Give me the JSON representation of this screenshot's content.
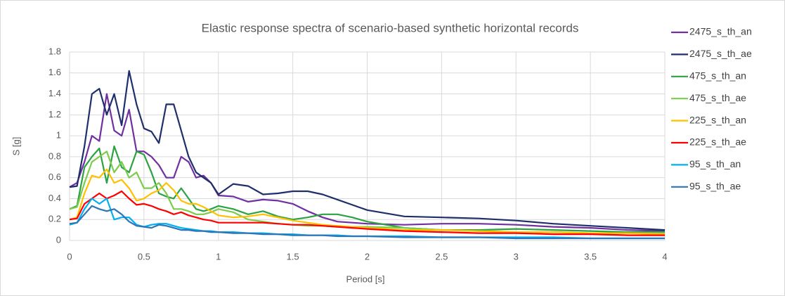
{
  "chart_data": {
    "type": "line",
    "title": "Elastic response spectra of scenario-based synthetic horizontal records",
    "x_label": "Period [s]",
    "y_label": "S [g]",
    "x": [
      0,
      0.05,
      0.1,
      0.15,
      0.2,
      0.25,
      0.3,
      0.35,
      0.4,
      0.45,
      0.5,
      0.55,
      0.6,
      0.65,
      0.7,
      0.75,
      0.8,
      0.85,
      0.9,
      0.95,
      1,
      1.1,
      1.2,
      1.3,
      1.4,
      1.5,
      1.6,
      1.7,
      1.8,
      1.9,
      2,
      2.25,
      2.5,
      2.75,
      3,
      3.25,
      3.5,
      3.75,
      4
    ],
    "xlim": [
      0,
      4
    ],
    "xticks": [
      0,
      0.5,
      1,
      1.5,
      2,
      2.5,
      3,
      3.5,
      4
    ],
    "ylim": [
      0,
      1.8
    ],
    "yticks": [
      0,
      0.2,
      0.4,
      0.6,
      0.8,
      1,
      1.2,
      1.4,
      1.6,
      1.8
    ],
    "grid": true,
    "legend": "right",
    "series": [
      {
        "name": "2475_s_th_an",
        "color": "#7030a0",
        "values": [
          0.51,
          0.55,
          0.75,
          1.0,
          0.95,
          1.4,
          1.05,
          1.0,
          1.25,
          0.85,
          0.85,
          0.8,
          0.72,
          0.6,
          0.6,
          0.8,
          0.75,
          0.6,
          0.62,
          0.55,
          0.43,
          0.42,
          0.37,
          0.39,
          0.38,
          0.35,
          0.28,
          0.22,
          0.18,
          0.17,
          0.16,
          0.15,
          0.16,
          0.16,
          0.15,
          0.13,
          0.12,
          0.1,
          0.09
        ]
      },
      {
        "name": "2475_s_th_ae",
        "color": "#1f2f6b",
        "values": [
          0.51,
          0.52,
          0.9,
          1.4,
          1.45,
          1.2,
          1.4,
          1.1,
          1.62,
          1.3,
          1.07,
          1.04,
          0.93,
          1.3,
          1.3,
          1.05,
          0.8,
          0.65,
          0.6,
          0.55,
          0.44,
          0.54,
          0.52,
          0.44,
          0.45,
          0.47,
          0.47,
          0.44,
          0.39,
          0.34,
          0.29,
          0.23,
          0.22,
          0.21,
          0.19,
          0.16,
          0.14,
          0.12,
          0.1
        ]
      },
      {
        "name": "475_s_th_an",
        "color": "#2ca243",
        "values": [
          0.3,
          0.33,
          0.7,
          0.8,
          0.88,
          0.55,
          0.9,
          0.7,
          0.65,
          0.85,
          0.82,
          0.65,
          0.45,
          0.42,
          0.4,
          0.5,
          0.4,
          0.3,
          0.28,
          0.3,
          0.33,
          0.3,
          0.25,
          0.28,
          0.23,
          0.2,
          0.22,
          0.25,
          0.25,
          0.22,
          0.18,
          0.12,
          0.1,
          0.1,
          0.11,
          0.1,
          0.09,
          0.08,
          0.08
        ]
      },
      {
        "name": "475_s_th_ae",
        "color": "#7ccc4c",
        "values": [
          0.3,
          0.32,
          0.55,
          0.75,
          0.8,
          0.85,
          0.65,
          0.75,
          0.6,
          0.65,
          0.5,
          0.5,
          0.55,
          0.45,
          0.3,
          0.3,
          0.28,
          0.25,
          0.25,
          0.27,
          0.3,
          0.27,
          0.2,
          0.18,
          0.16,
          0.15,
          0.14,
          0.14,
          0.13,
          0.13,
          0.13,
          0.12,
          0.1,
          0.09,
          0.08,
          0.08,
          0.07,
          0.07,
          0.07
        ]
      },
      {
        "name": "225_s_th_an",
        "color": "#ffc000",
        "values": [
          0.2,
          0.22,
          0.45,
          0.62,
          0.6,
          0.68,
          0.55,
          0.58,
          0.5,
          0.38,
          0.4,
          0.45,
          0.48,
          0.55,
          0.48,
          0.38,
          0.35,
          0.35,
          0.32,
          0.28,
          0.24,
          0.22,
          0.23,
          0.25,
          0.22,
          0.19,
          0.17,
          0.15,
          0.14,
          0.13,
          0.12,
          0.1,
          0.1,
          0.09,
          0.08,
          0.08,
          0.07,
          0.07,
          0.06
        ]
      },
      {
        "name": "225_s_th_ae",
        "color": "#ff0000",
        "values": [
          0.2,
          0.21,
          0.35,
          0.4,
          0.45,
          0.4,
          0.43,
          0.47,
          0.4,
          0.34,
          0.35,
          0.33,
          0.3,
          0.28,
          0.25,
          0.27,
          0.24,
          0.22,
          0.2,
          0.19,
          0.17,
          0.17,
          0.17,
          0.17,
          0.16,
          0.15,
          0.15,
          0.14,
          0.13,
          0.12,
          0.11,
          0.09,
          0.08,
          0.07,
          0.07,
          0.06,
          0.06,
          0.05,
          0.05
        ]
      },
      {
        "name": "95_s_th_an",
        "color": "#00b0f0",
        "values": [
          0.15,
          0.17,
          0.3,
          0.4,
          0.35,
          0.4,
          0.2,
          0.22,
          0.22,
          0.15,
          0.13,
          0.15,
          0.16,
          0.16,
          0.14,
          0.12,
          0.11,
          0.1,
          0.09,
          0.09,
          0.08,
          0.08,
          0.07,
          0.07,
          0.06,
          0.06,
          0.05,
          0.05,
          0.05,
          0.04,
          0.04,
          0.04,
          0.03,
          0.03,
          0.03,
          0.03,
          0.02,
          0.02,
          0.02
        ]
      },
      {
        "name": "95_s_th_ae",
        "color": "#2e75b6",
        "values": [
          0.16,
          0.17,
          0.25,
          0.33,
          0.3,
          0.28,
          0.3,
          0.25,
          0.18,
          0.14,
          0.13,
          0.12,
          0.15,
          0.14,
          0.12,
          0.1,
          0.1,
          0.09,
          0.09,
          0.08,
          0.08,
          0.07,
          0.07,
          0.06,
          0.06,
          0.05,
          0.05,
          0.05,
          0.04,
          0.04,
          0.04,
          0.03,
          0.03,
          0.03,
          0.02,
          0.02,
          0.02,
          0.02,
          0.02
        ]
      }
    ]
  }
}
